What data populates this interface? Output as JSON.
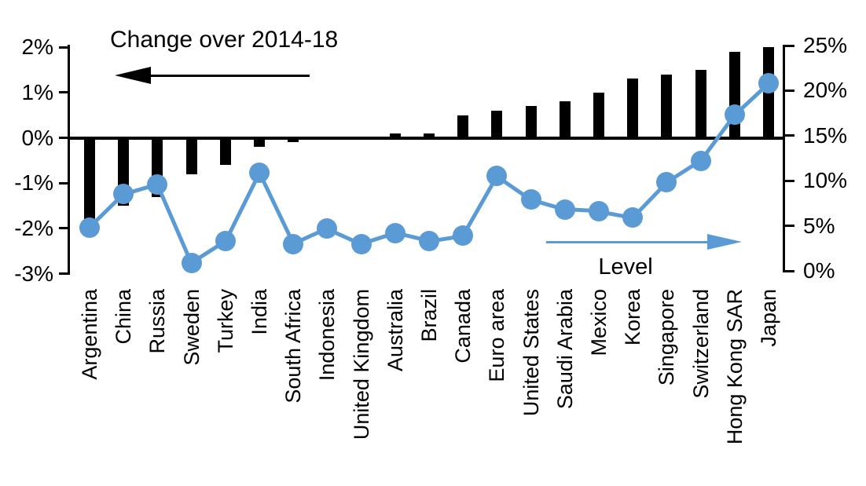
{
  "chart_data": {
    "type": "combo",
    "categories": [
      "Argentina",
      "China",
      "Russia",
      "Sweden",
      "Turkey",
      "India",
      "South Africa",
      "Indonesia",
      "United Kingdom",
      "Australia",
      "Brazil",
      "Canada",
      "Euro area",
      "United States",
      "Saudi Arabia",
      "Mexico",
      "Korea",
      "Singapore",
      "Switzerland",
      "Hong Kong SAR",
      "Japan"
    ],
    "series": [
      {
        "name": "Change over 2014-18",
        "type": "bar",
        "axis": "left",
        "color": "#000000",
        "values": [
          -1.8,
          -1.5,
          -1.3,
          -0.8,
          -0.6,
          -0.2,
          -0.1,
          0,
          0,
          0.1,
          0.1,
          0.5,
          0.6,
          0.7,
          0.8,
          1.0,
          1.3,
          1.4,
          1.5,
          1.9,
          2.0
        ]
      },
      {
        "name": "Level",
        "type": "line",
        "axis": "right",
        "color": "#5B9BD5",
        "values": [
          4.8,
          8.5,
          9.6,
          0.9,
          3.3,
          10.9,
          3.0,
          4.7,
          3.0,
          4.2,
          3.3,
          3.9,
          10.5,
          7.9,
          6.8,
          6.6,
          5.9,
          9.8,
          12.2,
          17.3,
          20.8
        ]
      }
    ],
    "left_axis": {
      "tick_labels": [
        "2%",
        "1%",
        "0%",
        "-1%",
        "-2%",
        "-3%"
      ],
      "min": -3,
      "max": 2,
      "unit": "%"
    },
    "right_axis": {
      "tick_labels": [
        "25%",
        "20%",
        "15%",
        "10%",
        "5%",
        "0%"
      ],
      "min": 0,
      "max": 25,
      "unit": "%"
    },
    "annotations": {
      "left_series_label": "Change over 2014-18",
      "left_arrow_direction": "left",
      "right_series_label": "Level",
      "right_arrow_direction": "right"
    },
    "grid": "off",
    "background": "#FFFFFF",
    "legend_position": "none"
  }
}
